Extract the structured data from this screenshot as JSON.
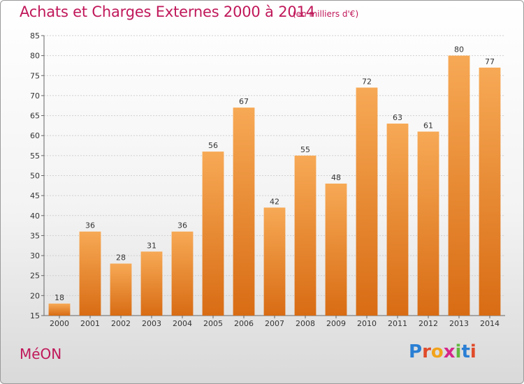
{
  "header": {
    "title": "Achats et Charges Externes 2000 à 2014",
    "subtitle": "(en milliers d'€)"
  },
  "footer": {
    "commune": "MéON",
    "logo_text": "Proxiti",
    "logo_colors": [
      "#2a7fd4",
      "#e04b2a",
      "#f2a31b",
      "#d5268a",
      "#62b83e",
      "#2a7fd4",
      "#e04b2a"
    ]
  },
  "colors": {
    "bar_light": "#f7a955",
    "bar_dark": "#d86c14",
    "title": "#c0185a"
  },
  "chart_data": {
    "type": "bar",
    "title": "Achats et Charges Externes 2000 à 2014",
    "subtitle": "(en milliers d'€)",
    "categories": [
      "2000",
      "2001",
      "2002",
      "2003",
      "2004",
      "2005",
      "2006",
      "2007",
      "2008",
      "2009",
      "2010",
      "2011",
      "2012",
      "2013",
      "2014"
    ],
    "values": [
      18,
      36,
      28,
      31,
      36,
      56,
      67,
      42,
      55,
      48,
      72,
      63,
      61,
      80,
      77
    ],
    "ylim": [
      15,
      85
    ],
    "yticks": [
      15,
      20,
      25,
      30,
      35,
      40,
      45,
      50,
      55,
      60,
      65,
      70,
      75,
      80,
      85
    ],
    "grid": true,
    "xlabel": "",
    "ylabel": ""
  }
}
